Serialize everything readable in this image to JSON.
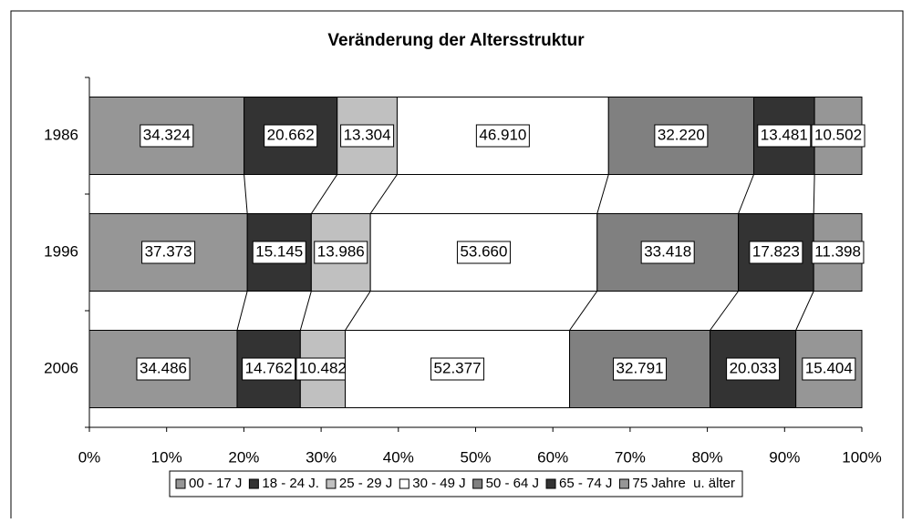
{
  "chart_data": {
    "type": "stacked_bar_100",
    "orientation": "horizontal",
    "title": "Veränderung der Altersstruktur",
    "categories": [
      "1986",
      "1996",
      "2006"
    ],
    "series": [
      {
        "name": "00 - 17 J",
        "color": "#969696",
        "values": [
          34324,
          37373,
          34486
        ],
        "value_labels": [
          "34.324",
          "37.373",
          "34.486"
        ]
      },
      {
        "name": "18 - 24 J.",
        "color": "#333333",
        "values": [
          20662,
          15145,
          14762
        ],
        "value_labels": [
          "20.662",
          "15.145",
          "14.762"
        ]
      },
      {
        "name": "25 - 29 J",
        "color": "#c0c0c0",
        "values": [
          13304,
          13986,
          10482
        ],
        "value_labels": [
          "13.304",
          "13.986",
          "10.482"
        ]
      },
      {
        "name": "30 - 49 J",
        "color": "#ffffff",
        "values": [
          46910,
          53660,
          52377
        ],
        "value_labels": [
          "46.910",
          "53.660",
          "52.377"
        ]
      },
      {
        "name": "50 - 64 J",
        "color": "#808080",
        "values": [
          32220,
          33418,
          32791
        ],
        "value_labels": [
          "32.220",
          "33.418",
          "32.791"
        ]
      },
      {
        "name": "65 - 74 J",
        "color": "#333333",
        "values": [
          13481,
          17823,
          20033
        ],
        "value_labels": [
          "13.481",
          "17.823",
          "20.033"
        ]
      },
      {
        "name": "75 Jahre  u. älter",
        "color": "#969696",
        "values": [
          10502,
          11398,
          15404
        ],
        "value_labels": [
          "10.502",
          "11.398",
          "15.404"
        ]
      }
    ],
    "xlim": [
      0,
      100
    ],
    "xticks": [
      {
        "value": 0,
        "label": "0%"
      },
      {
        "value": 10,
        "label": "10%"
      },
      {
        "value": 20,
        "label": "20%"
      },
      {
        "value": 30,
        "label": "30%"
      },
      {
        "value": 40,
        "label": "40%"
      },
      {
        "value": 50,
        "label": "50%"
      },
      {
        "value": 60,
        "label": "60%"
      },
      {
        "value": 70,
        "label": "70%"
      },
      {
        "value": 80,
        "label": "80%"
      },
      {
        "value": 90,
        "label": "90%"
      },
      {
        "value": 100,
        "label": "100%"
      }
    ],
    "legend": "bottom"
  }
}
